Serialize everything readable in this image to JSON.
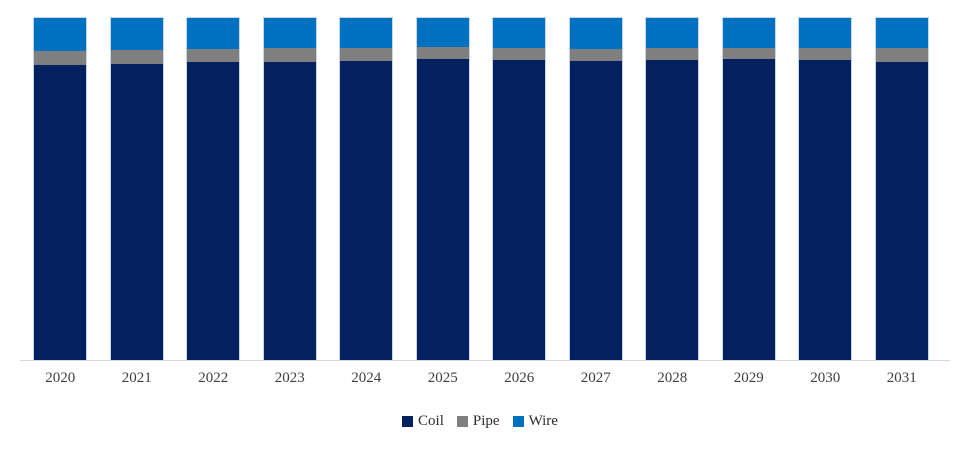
{
  "chart_data": {
    "type": "bar",
    "subtype": "stacked-column-100pct",
    "title": "",
    "xlabel": "",
    "ylabel": "",
    "categories": [
      "2020",
      "2021",
      "2022",
      "2023",
      "2024",
      "2025",
      "2026",
      "2027",
      "2028",
      "2029",
      "2030",
      "2031"
    ],
    "series": [
      {
        "name": "Coil",
        "color": "#03215F",
        "values": [
          86.3,
          86.6,
          87.2,
          87.2,
          87.5,
          88.0,
          87.8,
          87.5,
          87.8,
          88.1,
          87.8,
          87.2
        ]
      },
      {
        "name": "Pipe",
        "color": "#7F7F7F",
        "values": [
          4.1,
          4.1,
          3.8,
          4.1,
          3.8,
          3.5,
          3.5,
          3.5,
          3.5,
          3.2,
          3.5,
          4.1
        ]
      },
      {
        "name": "Wire",
        "color": "#0070C0",
        "values": [
          9.6,
          9.3,
          9.0,
          8.7,
          8.7,
          8.5,
          8.7,
          9.0,
          8.7,
          8.7,
          8.7,
          8.7
        ]
      }
    ],
    "values_unit": "percent_of_total",
    "ylim": [
      0,
      100
    ],
    "y_axis_visible": false,
    "gridlines": false,
    "legend_position": "bottom",
    "stack_order_bottom_to_top": [
      "Coil",
      "Pipe",
      "Wire"
    ],
    "axis_line_color": "#D6D6D6",
    "background_color": "#FFFFFF"
  }
}
